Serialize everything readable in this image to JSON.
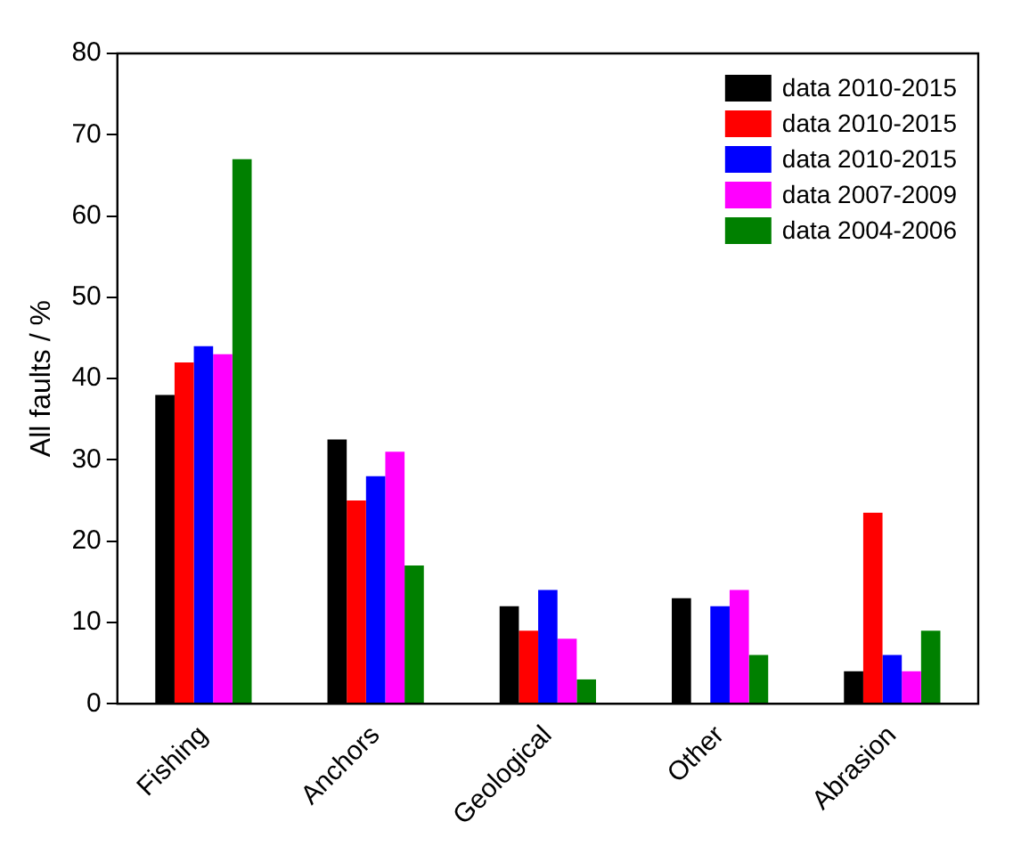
{
  "chart_data": {
    "type": "bar",
    "ylabel": "All faults / %",
    "categories": [
      "Fishing",
      "Anchors",
      "Geological",
      "Other",
      "Abrasion"
    ],
    "series": [
      {
        "name": "data 2010-2015",
        "color": "#000000",
        "values": [
          38,
          32.5,
          12,
          13,
          4
        ]
      },
      {
        "name": "data 2010-2015",
        "color": "#ff0000",
        "values": [
          42,
          25,
          9,
          null,
          23.5
        ]
      },
      {
        "name": "data 2010-2015",
        "color": "#0000ff",
        "values": [
          44,
          28,
          14,
          12,
          6
        ]
      },
      {
        "name": "data 2007-2009",
        "color": "#ff00ff",
        "values": [
          43,
          31,
          8,
          14,
          4
        ]
      },
      {
        "name": "data 2004-2006",
        "color": "#008000",
        "values": [
          67,
          17,
          3,
          6,
          9
        ]
      }
    ],
    "ylim": [
      0,
      80
    ],
    "yticks": [
      0,
      10,
      20,
      30,
      40,
      50,
      60,
      70,
      80
    ],
    "grid": false,
    "legend": "top right"
  }
}
